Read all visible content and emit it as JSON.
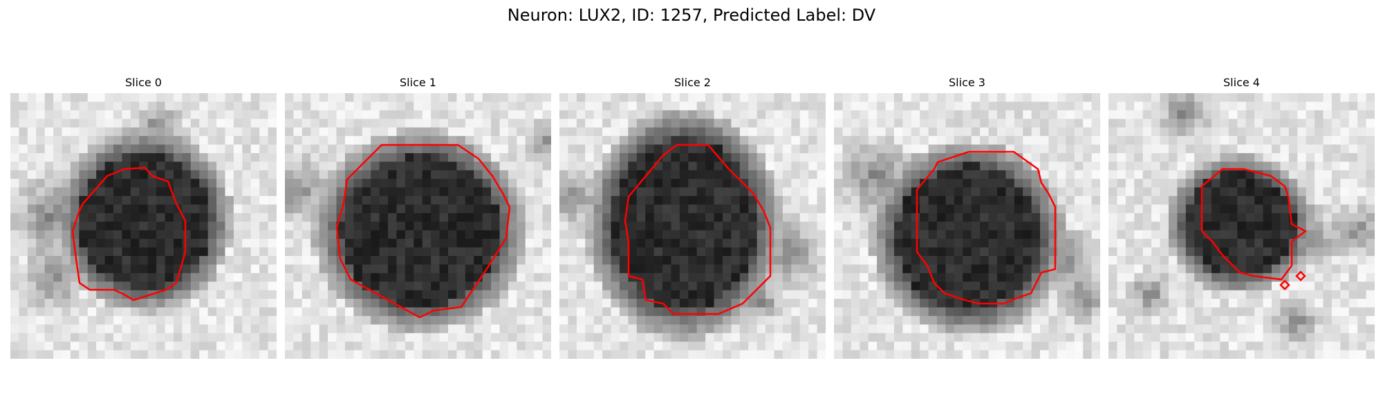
{
  "figure": {
    "title": "Neuron: LUX2, ID: 1257, Predicted Label: DV",
    "outline_color": "#ff0000"
  },
  "panels": [
    {
      "title": "Slice 0"
    },
    {
      "title": "Slice 1"
    },
    {
      "title": "Slice 2"
    },
    {
      "title": "Slice 3"
    },
    {
      "title": "Slice 4"
    }
  ]
}
